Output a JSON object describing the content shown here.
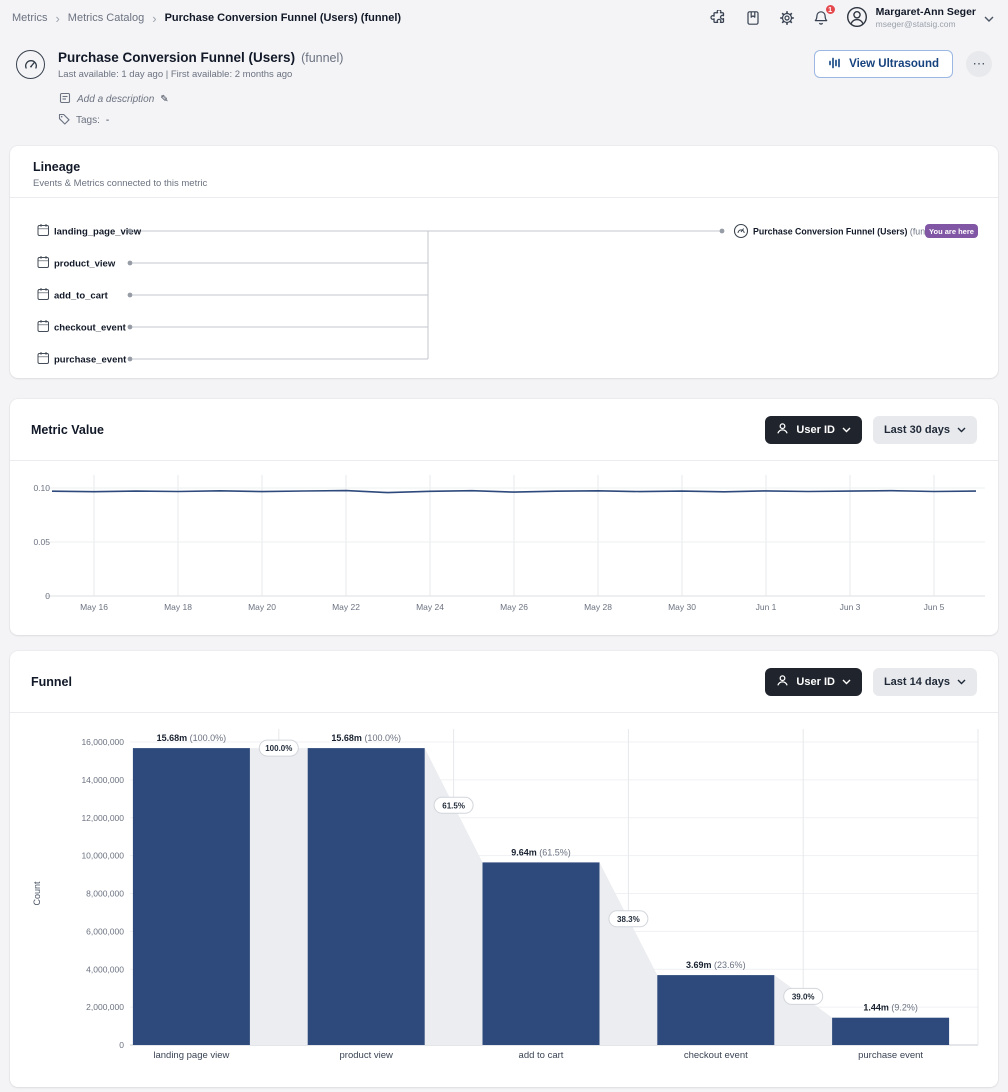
{
  "colors": {
    "accent_navy": "#2e4a7c",
    "badge_purple": "#8157a5",
    "ultrasound_blue": "#1d4e89",
    "notification_red": "#e5484d",
    "dark_button": "#20242c",
    "connector_gray": "#ebedf0"
  },
  "breadcrumb": {
    "separator": "›",
    "items": [
      "Metrics",
      "Metrics Catalog",
      "Purchase Conversion Funnel (Users) (funnel)"
    ]
  },
  "topbar": {
    "notification_badge": "1",
    "user": {
      "name": "Margaret-Ann Seger",
      "email": "mseger@statsig.com"
    }
  },
  "header": {
    "title": "Purchase Conversion Funnel (Users)",
    "type_suffix": "(funnel)",
    "availability": "Last available: 1 day ago | First available: 2 months ago",
    "description_placeholder": "Add a description",
    "pencil_glyph": "✎",
    "tags_label": "Tags:",
    "tags_value": "-",
    "ultrasound_button": "View Ultrasound",
    "more_glyph": "⋯"
  },
  "lineage": {
    "title": "Lineage",
    "subtitle": "Events & Metrics connected to this metric",
    "events": [
      "landing_page_view",
      "product_view",
      "add_to_cart",
      "checkout_event",
      "purchase_event"
    ],
    "target": {
      "name": "Purchase Conversion Funnel (Users)",
      "suffix": "(funnel)",
      "badge": "You are here"
    }
  },
  "metric_value": {
    "title": "Metric Value",
    "id_selector": "User ID",
    "range_selector": "Last 30 days"
  },
  "funnel": {
    "title": "Funnel",
    "id_selector": "User ID",
    "range_selector": "Last 14 days"
  },
  "icons": [
    "puzzle-icon",
    "journal-icon",
    "gear-icon",
    "bell-icon",
    "avatar-icon",
    "chevron-down-icon",
    "gauge-icon",
    "waveform-icon",
    "more-icon",
    "note-icon",
    "pencil-icon",
    "tag-icon",
    "calendar-icon",
    "person-icon"
  ],
  "chart_data": [
    {
      "type": "line",
      "title": "Metric Value",
      "x_ticks": [
        "May 16",
        "May 18",
        "May 20",
        "May 22",
        "May 24",
        "May 26",
        "May 28",
        "May 30",
        "Jun 1",
        "Jun 3",
        "Jun 5"
      ],
      "points_per_tick": 2,
      "x_index_of_first_tick": 1,
      "y_ticks": [
        "0.10",
        "0.05",
        "0"
      ],
      "y_tick_step": 0.05,
      "ylim": [
        0,
        0.125
      ],
      "values": [
        0.097,
        0.0966,
        0.0971,
        0.0968,
        0.0974,
        0.0967,
        0.0972,
        0.0976,
        0.0957,
        0.0969,
        0.0975,
        0.0962,
        0.097,
        0.0974,
        0.0967,
        0.0971,
        0.0965,
        0.0973,
        0.0968,
        0.0971,
        0.0975,
        0.0968,
        0.0971
      ],
      "line_color": "#2e4a7c",
      "grid": true,
      "legend": "none"
    },
    {
      "type": "bar",
      "title": "Funnel",
      "ylabel": "Count",
      "categories": [
        "landing page view",
        "product view",
        "add to cart",
        "checkout event",
        "purchase event"
      ],
      "values": [
        15680000,
        15680000,
        9640000,
        3690000,
        1440000
      ],
      "labels": [
        {
          "value": "15.68m",
          "pct": "(100.0%)"
        },
        {
          "value": "15.68m",
          "pct": "(100.0%)"
        },
        {
          "value": "9.64m",
          "pct": "(61.5%)"
        },
        {
          "value": "3.69m",
          "pct": "(23.6%)"
        },
        {
          "value": "1.44m",
          "pct": "(9.2%)"
        }
      ],
      "step_conversions": [
        "100.0%",
        "61.5%",
        "38.3%",
        "39.0%"
      ],
      "ylim": [
        0,
        16000000
      ],
      "y_tick_step": 2000000,
      "bar_color": "#2e4a7c",
      "connector_color": "#ebedf0",
      "grid": true,
      "legend": "none"
    }
  ]
}
